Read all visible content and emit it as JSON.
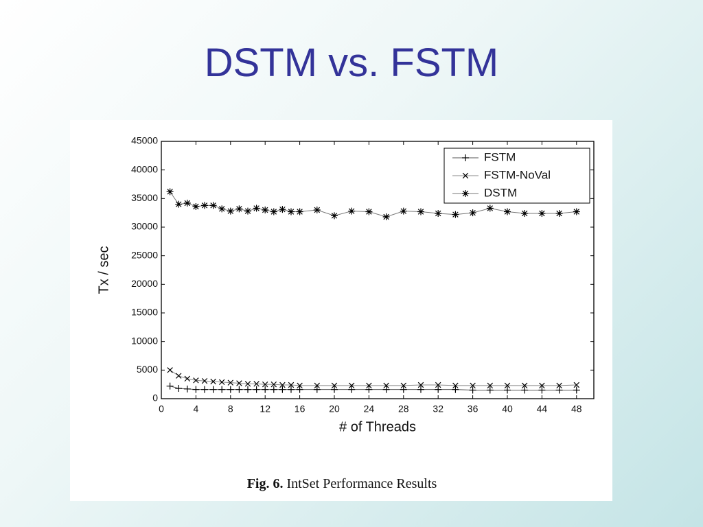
{
  "slide_title": "DSTM vs. FSTM",
  "chart_data": {
    "type": "line",
    "caption": {
      "label": "Fig. 6.",
      "text": "IntSet Performance Results"
    },
    "xlabel": "# of Threads",
    "ylabel": "Tx / sec",
    "x": [
      1,
      2,
      3,
      4,
      5,
      6,
      7,
      8,
      9,
      10,
      11,
      12,
      13,
      14,
      15,
      16,
      18,
      20,
      22,
      24,
      26,
      28,
      30,
      32,
      34,
      36,
      38,
      40,
      42,
      44,
      46,
      48
    ],
    "series": [
      {
        "name": "FSTM",
        "marker": "plus",
        "color": "#555555",
        "values": [
          2200,
          1800,
          1700,
          1600,
          1600,
          1600,
          1600,
          1600,
          1600,
          1600,
          1600,
          1600,
          1600,
          1600,
          1600,
          1600,
          1600,
          1600,
          1600,
          1600,
          1600,
          1600,
          1600,
          1600,
          1600,
          1500,
          1500,
          1500,
          1500,
          1500,
          1500,
          1500
        ]
      },
      {
        "name": "FSTM-NoVal",
        "marker": "x",
        "color": "#888888",
        "values": [
          5000,
          4000,
          3500,
          3200,
          3100,
          3000,
          2900,
          2800,
          2700,
          2600,
          2600,
          2500,
          2500,
          2400,
          2400,
          2300,
          2300,
          2300,
          2300,
          2300,
          2300,
          2300,
          2400,
          2400,
          2300,
          2300,
          2300,
          2300,
          2300,
          2300,
          2300,
          2400
        ]
      },
      {
        "name": "DSTM",
        "marker": "star",
        "color": "#777777",
        "values": [
          36200,
          34000,
          34200,
          33600,
          33800,
          33800,
          33200,
          32800,
          33200,
          32800,
          33300,
          33000,
          32700,
          33100,
          32700,
          32700,
          33000,
          32000,
          32800,
          32700,
          31800,
          32800,
          32700,
          32400,
          32200,
          32500,
          33300,
          32700,
          32400,
          32400,
          32400,
          32700
        ]
      }
    ],
    "xlim": [
      0,
      50
    ],
    "xticks": [
      0,
      4,
      8,
      12,
      16,
      20,
      24,
      28,
      32,
      36,
      40,
      44,
      48
    ],
    "ylim": [
      0,
      45000
    ],
    "yticks": [
      0,
      5000,
      10000,
      15000,
      20000,
      25000,
      30000,
      35000,
      40000,
      45000
    ],
    "legend": "upper right"
  }
}
